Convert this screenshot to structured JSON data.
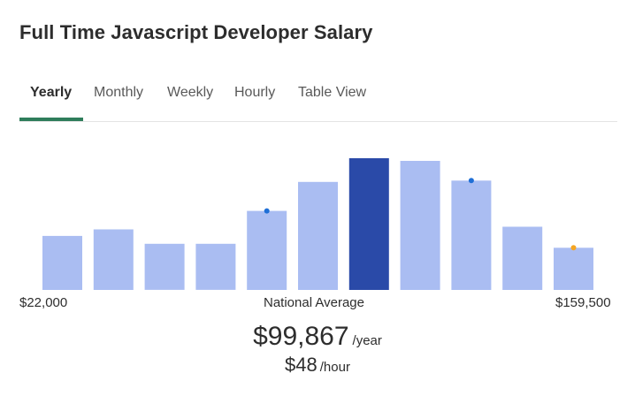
{
  "header": {
    "title": "Full Time Javascript Developer Salary"
  },
  "tabs": [
    {
      "label": "Yearly",
      "active": true
    },
    {
      "label": "Monthly",
      "active": false
    },
    {
      "label": "Weekly",
      "active": false
    },
    {
      "label": "Hourly",
      "active": false
    },
    {
      "label": "Table View",
      "active": false
    }
  ],
  "chart_data": {
    "type": "bar",
    "bar_relative_heights": [
      0.41,
      0.46,
      0.35,
      0.35,
      0.6,
      0.82,
      1.0,
      0.98,
      0.83,
      0.48,
      0.32
    ],
    "highlight_index": 6,
    "markers": [
      {
        "bar_index": 4,
        "color": "#1f6fd6"
      },
      {
        "bar_index": 8,
        "color": "#1f6fd6"
      },
      {
        "bar_index": 10,
        "color": "#f5a623"
      }
    ],
    "colors": {
      "bar": "#aabdf2",
      "highlight": "#2a4aa8"
    },
    "range_min_label": "$22,000",
    "range_max_label": "$159,500",
    "center_label": "National Average"
  },
  "average": {
    "yearly_amount": "$99,867",
    "yearly_unit": "/year",
    "hourly_amount": "$48",
    "hourly_unit": "/hour"
  }
}
